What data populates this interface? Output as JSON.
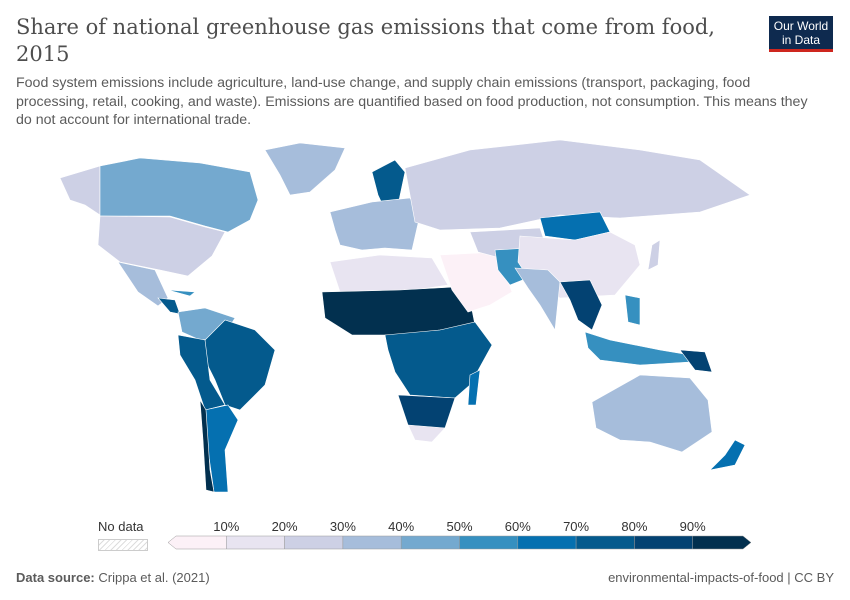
{
  "header": {
    "title": "Share of national greenhouse gas emissions that come from food, 2015",
    "subtitle": "Food system emissions include agriculture, land-use change, and supply chain emissions (transport, packaging, food processing, retail, cooking, and waste). Emissions are quantified based on food production, not consumption. This means they do not account for international trade.",
    "logo": "Our World in Data"
  },
  "chart_data": {
    "type": "choropleth-map",
    "legend": {
      "no_data_label": "No data",
      "ticks": [
        "10%",
        "20%",
        "30%",
        "40%",
        "50%",
        "60%",
        "70%",
        "80%",
        "90%"
      ],
      "bins": [
        0,
        10,
        20,
        30,
        40,
        50,
        60,
        70,
        80,
        90,
        100
      ],
      "colors": [
        "#fcf1f7",
        "#e8e4f1",
        "#cdd0e5",
        "#a6bddb",
        "#74a9cf",
        "#3690c0",
        "#0570b0",
        "#045a8d",
        "#034272",
        "#02304f"
      ]
    }
  },
  "footer": {
    "source_label": "Data source:",
    "source": "Crippa et al. (2021)",
    "license": "environmental-impacts-of-food | CC BY"
  }
}
